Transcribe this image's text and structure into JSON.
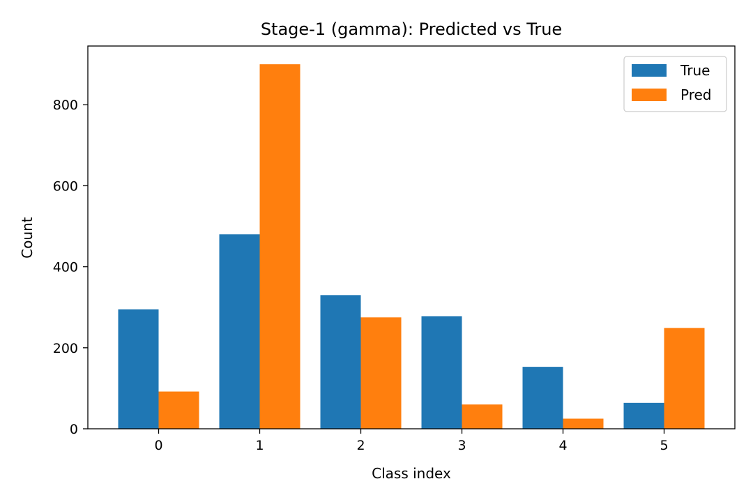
{
  "chart_data": {
    "type": "bar",
    "title": "Stage-1 (gamma): Predicted vs True",
    "xlabel": "Class index",
    "ylabel": "Count",
    "categories": [
      "0",
      "1",
      "2",
      "3",
      "4",
      "5"
    ],
    "series": [
      {
        "name": "True",
        "color": "#1f77b4",
        "values": [
          295,
          480,
          330,
          278,
          153,
          64
        ]
      },
      {
        "name": "Pred",
        "color": "#ff7f0e",
        "values": [
          92,
          900,
          275,
          60,
          25,
          249
        ]
      }
    ],
    "yticks": [
      "0",
      "200",
      "400",
      "600",
      "800"
    ],
    "ylim": [
      0,
      945
    ],
    "xlim": [
      -0.7,
      5.7
    ],
    "grid": false,
    "legend_position": "top-right"
  }
}
